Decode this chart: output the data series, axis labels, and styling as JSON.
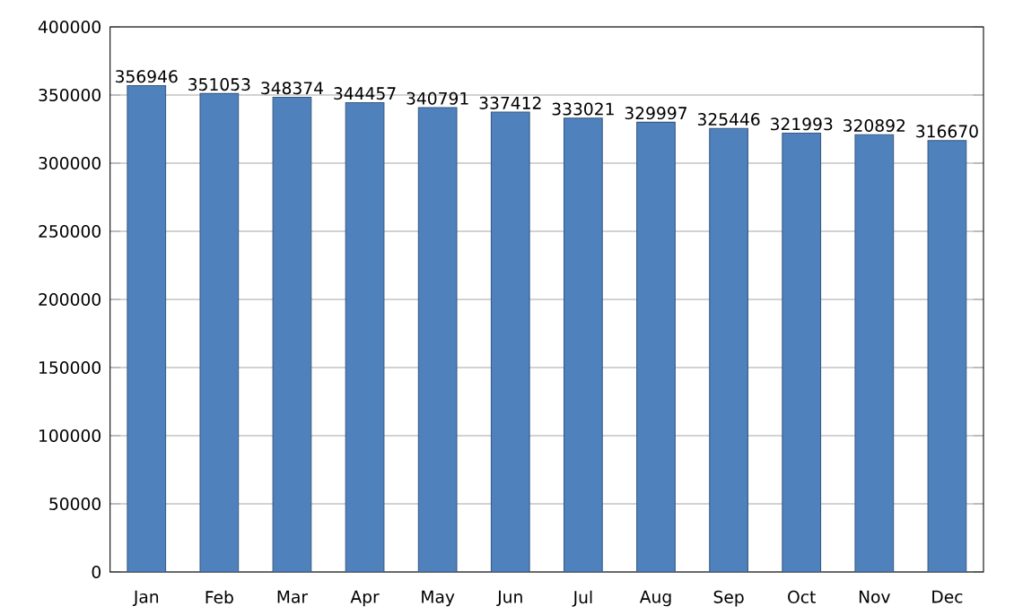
{
  "chart_data": {
    "type": "bar",
    "categories": [
      "Jan",
      "Feb",
      "Mar",
      "Apr",
      "May",
      "Jun",
      "Jul",
      "Aug",
      "Sep",
      "Oct",
      "Nov",
      "Dec"
    ],
    "values": [
      356946,
      351053,
      348374,
      344457,
      340791,
      337412,
      333021,
      329997,
      325446,
      321993,
      320892,
      316670
    ],
    "value_labels": [
      "356946",
      "351053",
      "348374",
      "344457",
      "340791",
      "337412",
      "333021",
      "329997",
      "325446",
      "321993",
      "320892",
      "316670"
    ],
    "color": "#4f81bd",
    "ylim": [
      0,
      400000
    ],
    "yticks": [
      0,
      50000,
      100000,
      150000,
      200000,
      250000,
      300000,
      350000,
      400000
    ],
    "grid": "y"
  }
}
